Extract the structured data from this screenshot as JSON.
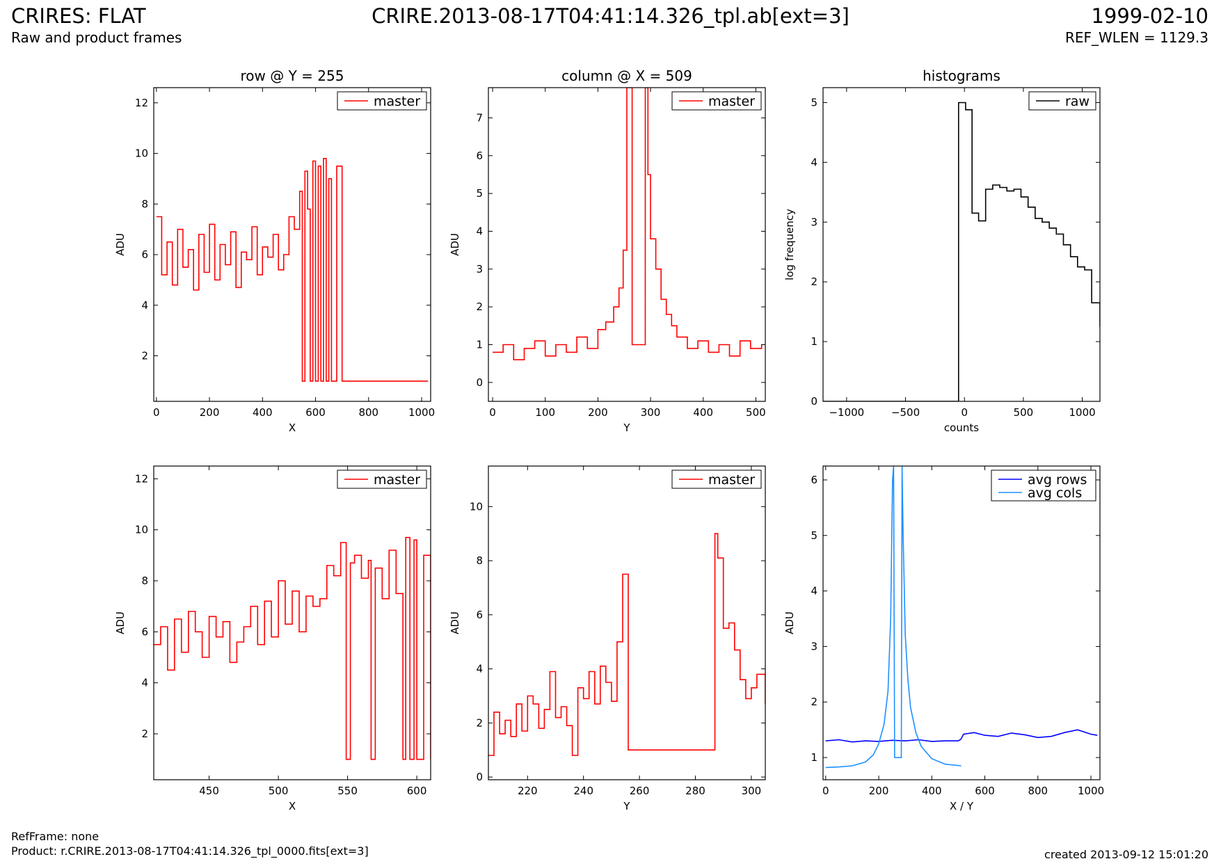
{
  "header": {
    "title": "CRIRES: FLAT",
    "subtitle": "Raw and product frames",
    "file_label": "CRIRE.2013-08-17T04:41:14.326_tpl.ab[ext=3]",
    "date": "1999-02-10",
    "ref_wlen": "REF_WLEN = 1129.3"
  },
  "footer": {
    "ref_frame": "RefFrame: none",
    "product": "Product: r.CRIRE.2013-08-17T04:41:14.326_tpl_0000.fits[ext=3]",
    "created": "created 2013-09-12 15:01:20"
  },
  "colors": {
    "master": "#ff0000",
    "raw": "#000000",
    "avg_rows": "#0000ff",
    "avg_cols": "#1e90ff"
  },
  "chart_data": [
    {
      "id": "row",
      "type": "line",
      "title": "row @ Y = 255",
      "xlabel": "X",
      "ylabel": "ADU",
      "xlim": [
        -10,
        1034
      ],
      "ylim": [
        0.2,
        12.6
      ],
      "xticks": [
        0,
        200,
        400,
        600,
        800,
        1000
      ],
      "yticks": [
        2,
        4,
        6,
        8,
        10,
        12
      ],
      "legend": "top-right",
      "series": [
        {
          "name": "master",
          "color": "#ff0000",
          "step": true,
          "x": [
            0,
            20,
            40,
            60,
            80,
            100,
            120,
            140,
            160,
            180,
            200,
            220,
            240,
            260,
            280,
            300,
            320,
            340,
            360,
            380,
            400,
            420,
            440,
            460,
            480,
            500,
            520,
            540,
            550,
            560,
            570,
            580,
            590,
            600,
            610,
            620,
            630,
            640,
            650,
            660,
            680,
            700,
            720,
            1024
          ],
          "y": [
            7.5,
            5.2,
            6.5,
            4.8,
            7.0,
            5.5,
            6.2,
            4.6,
            6.8,
            5.3,
            7.2,
            5.0,
            6.4,
            5.6,
            6.9,
            4.7,
            6.1,
            5.8,
            7.1,
            5.2,
            6.3,
            5.9,
            6.8,
            5.4,
            6.0,
            7.5,
            7.0,
            8.5,
            1.0,
            9.3,
            7.8,
            1.0,
            9.7,
            1.0,
            9.5,
            1.0,
            9.8,
            1.0,
            9.0,
            1.0,
            9.5,
            1.0,
            1.0,
            1.0
          ]
        }
      ]
    },
    {
      "id": "column",
      "type": "line",
      "title": "column @ X = 509",
      "xlabel": "Y",
      "ylabel": "ADU",
      "xlim": [
        -8,
        518
      ],
      "ylim": [
        -0.5,
        7.8
      ],
      "xticks": [
        0,
        100,
        200,
        300,
        400,
        500
      ],
      "yticks": [
        0,
        1,
        2,
        3,
        4,
        5,
        6,
        7
      ],
      "legend": "top-right",
      "series": [
        {
          "name": "master",
          "color": "#ff0000",
          "step": true,
          "x": [
            0,
            20,
            40,
            60,
            80,
            100,
            120,
            140,
            160,
            180,
            200,
            215,
            230,
            240,
            248,
            255,
            265,
            275,
            285,
            290,
            295,
            300,
            310,
            320,
            330,
            340,
            350,
            370,
            390,
            410,
            430,
            450,
            470,
            490,
            511
          ],
          "y": [
            0.8,
            1.0,
            0.6,
            0.9,
            1.1,
            0.7,
            1.0,
            0.8,
            1.2,
            0.9,
            1.4,
            1.6,
            2.0,
            2.5,
            3.5,
            7.8,
            1.0,
            1.0,
            1.0,
            7.8,
            5.5,
            3.8,
            3.0,
            2.2,
            1.8,
            1.5,
            1.2,
            0.9,
            1.1,
            0.8,
            1.0,
            0.7,
            1.1,
            0.9,
            1.0
          ]
        }
      ]
    },
    {
      "id": "histogram",
      "type": "line",
      "title": "histograms",
      "xlabel": "counts",
      "ylabel": "log frequency",
      "xlim": [
        -1200,
        1150
      ],
      "ylim": [
        0,
        5.25
      ],
      "xticks": [
        -1000,
        -500,
        0,
        500,
        1000
      ],
      "yticks": [
        0,
        1,
        2,
        3,
        4,
        5
      ],
      "legend": "top-right",
      "series": [
        {
          "name": "raw",
          "color": "#000000",
          "step": true,
          "x": [
            -1200,
            -115,
            -50,
            10,
            65,
            120,
            180,
            240,
            300,
            360,
            420,
            480,
            540,
            600,
            660,
            720,
            780,
            840,
            900,
            960,
            1020,
            1080,
            1150
          ],
          "y": [
            0,
            0,
            5.0,
            4.88,
            3.15,
            3.02,
            3.55,
            3.62,
            3.58,
            3.52,
            3.55,
            3.42,
            3.25,
            3.06,
            3.0,
            2.9,
            2.8,
            2.62,
            2.42,
            2.25,
            2.2,
            1.65,
            1.25
          ]
        }
      ]
    },
    {
      "id": "row-zoom",
      "type": "line",
      "title": "",
      "xlabel": "X",
      "ylabel": "ADU",
      "xlim": [
        410,
        610
      ],
      "ylim": [
        0.2,
        12.5
      ],
      "xticks": [
        450,
        500,
        550,
        600
      ],
      "yticks": [
        2,
        4,
        6,
        8,
        10,
        12
      ],
      "legend": "top-right",
      "series": [
        {
          "name": "master",
          "color": "#ff0000",
          "step": true,
          "x": [
            410,
            415,
            420,
            425,
            430,
            435,
            440,
            445,
            450,
            455,
            460,
            465,
            470,
            475,
            480,
            485,
            490,
            495,
            500,
            505,
            510,
            515,
            520,
            525,
            530,
            535,
            540,
            545,
            549,
            552,
            555,
            560,
            565,
            567,
            570,
            575,
            580,
            585,
            590,
            592,
            595,
            598,
            600,
            605,
            610
          ],
          "y": [
            5.5,
            6.2,
            4.5,
            6.5,
            5.2,
            6.8,
            6.0,
            5.0,
            6.6,
            5.8,
            6.4,
            4.8,
            5.6,
            6.2,
            7.0,
            5.5,
            7.2,
            5.8,
            8.0,
            6.3,
            7.6,
            6.0,
            7.4,
            7.0,
            7.3,
            8.6,
            8.2,
            9.5,
            1.0,
            8.7,
            9.0,
            8.1,
            8.8,
            1.0,
            8.5,
            7.3,
            9.2,
            7.5,
            1.0,
            9.7,
            1.0,
            9.6,
            1.0,
            9.0,
            1.0
          ]
        }
      ]
    },
    {
      "id": "column-zoom",
      "type": "line",
      "title": "",
      "xlabel": "Y",
      "ylabel": "ADU",
      "xlim": [
        206,
        305
      ],
      "ylim": [
        -0.1,
        11.5
      ],
      "xticks": [
        220,
        240,
        260,
        280,
        300
      ],
      "yticks": [
        0,
        2,
        4,
        6,
        8,
        10
      ],
      "legend": "top-right",
      "series": [
        {
          "name": "master",
          "color": "#ff0000",
          "step": true,
          "x": [
            206,
            208,
            210,
            212,
            214,
            216,
            218,
            220,
            222,
            224,
            226,
            228,
            230,
            232,
            234,
            236,
            238,
            240,
            242,
            244,
            246,
            248,
            250,
            252,
            254,
            256,
            287,
            288,
            290,
            292,
            294,
            296,
            298,
            300,
            302,
            305
          ],
          "y": [
            0.8,
            2.4,
            1.6,
            2.1,
            1.5,
            2.7,
            1.7,
            3.0,
            2.7,
            1.8,
            2.5,
            3.9,
            2.2,
            2.6,
            1.9,
            0.8,
            3.3,
            2.9,
            3.9,
            2.7,
            4.1,
            3.5,
            2.8,
            5.0,
            7.5,
            1.0,
            9.0,
            8.1,
            5.5,
            5.7,
            4.7,
            3.6,
            2.9,
            3.3,
            3.8,
            2.7
          ]
        }
      ]
    },
    {
      "id": "averages",
      "type": "line",
      "title": "",
      "xlabel": "X / Y",
      "ylabel": "ADU",
      "xlim": [
        -10,
        1034
      ],
      "ylim": [
        0.6,
        6.25
      ],
      "xticks": [
        0,
        200,
        400,
        600,
        800,
        1000
      ],
      "yticks": [
        1,
        2,
        3,
        4,
        5,
        6
      ],
      "legend": "top-right",
      "series": [
        {
          "name": "avg rows",
          "color": "#0000ff",
          "step": false,
          "x": [
            0,
            50,
            100,
            150,
            200,
            250,
            300,
            350,
            400,
            450,
            500,
            510,
            520,
            560,
            600,
            650,
            700,
            750,
            800,
            850,
            900,
            950,
            1000,
            1024
          ],
          "y": [
            1.3,
            1.32,
            1.28,
            1.3,
            1.29,
            1.31,
            1.3,
            1.32,
            1.29,
            1.3,
            1.3,
            1.33,
            1.42,
            1.45,
            1.4,
            1.38,
            1.44,
            1.41,
            1.36,
            1.38,
            1.45,
            1.5,
            1.42,
            1.4
          ]
        },
        {
          "name": "avg cols",
          "color": "#1e90ff",
          "step": false,
          "x": [
            0,
            50,
            100,
            150,
            180,
            200,
            220,
            235,
            245,
            252,
            256,
            260,
            285,
            288,
            292,
            300,
            310,
            320,
            340,
            360,
            400,
            450,
            511
          ],
          "y": [
            0.82,
            0.83,
            0.85,
            0.92,
            1.05,
            1.25,
            1.6,
            2.2,
            3.5,
            6.0,
            6.25,
            1.0,
            1.0,
            6.25,
            5.0,
            3.2,
            2.4,
            1.9,
            1.45,
            1.2,
            0.98,
            0.88,
            0.85
          ]
        }
      ]
    }
  ]
}
